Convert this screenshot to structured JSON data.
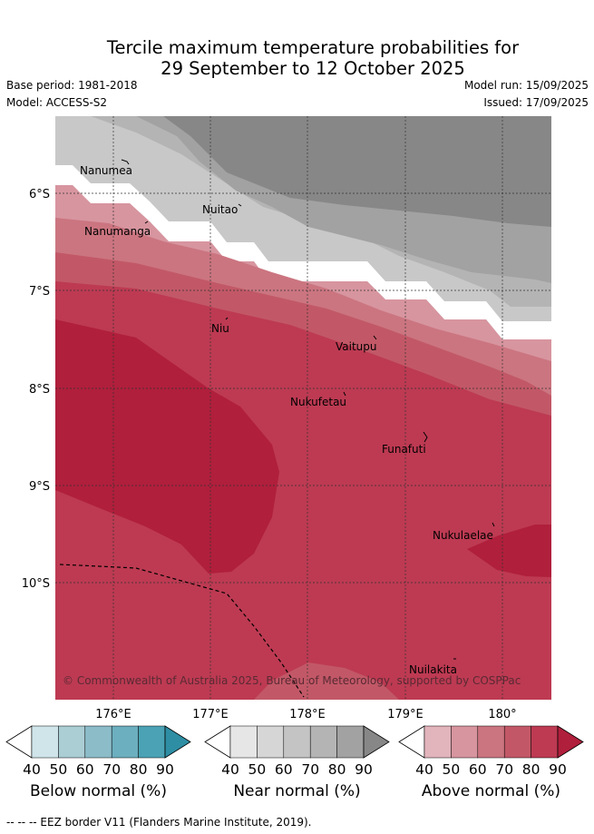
{
  "title_line1": "Tercile maximum temperature probabilities for",
  "title_line2": "29 September to 12 October 2025",
  "base_period": "Base period: 1981-2018",
  "model": "Model: ACCESS-S2",
  "model_run": "Model run: 15/09/2025",
  "issued": "Issued: 17/09/2025",
  "lat_labels": [
    "6°S",
    "7°S",
    "8°S",
    "9°S",
    "10°S"
  ],
  "lon_labels": [
    "176°E",
    "177°E",
    "178°E",
    "179°E",
    "180°"
  ],
  "places": [
    "Nanumea",
    "Nuitao",
    "Nanumanga",
    "Niu",
    "Vaitupu",
    "Nukufetau",
    "Funafuti",
    "Nukulaelae",
    "Nuilakita"
  ],
  "copyright": "© Commonwealth of Australia 2025, Bureau of Meteorology, supported by COSPPac",
  "colorbars": [
    {
      "title": "Below normal (%)",
      "ticks": [
        "40",
        "50",
        "60",
        "70",
        "80",
        "90"
      ],
      "colors": [
        "#ffffff",
        "#cfe5ea",
        "#abcdd4",
        "#8cbcc8",
        "#6cafbf",
        "#4aa2b4",
        "#2e8ea4"
      ]
    },
    {
      "title": "Near normal (%)",
      "ticks": [
        "40",
        "50",
        "60",
        "70",
        "80",
        "90"
      ],
      "colors": [
        "#ffffff",
        "#e6e6e6",
        "#d6d6d6",
        "#c4c4c4",
        "#b4b4b4",
        "#a2a2a2",
        "#878787"
      ]
    },
    {
      "title": "Above normal (%)",
      "ticks": [
        "40",
        "50",
        "60",
        "70",
        "80",
        "90"
      ],
      "colors": [
        "#ffffff",
        "#e2b4bc",
        "#d7959f",
        "#cb7580",
        "#c25867",
        "#bd3a52",
        "#b01f3c"
      ]
    }
  ],
  "eez_legend": "-- -- -- EEZ border V11 (Flanders Marine Institute, 2019)."
}
